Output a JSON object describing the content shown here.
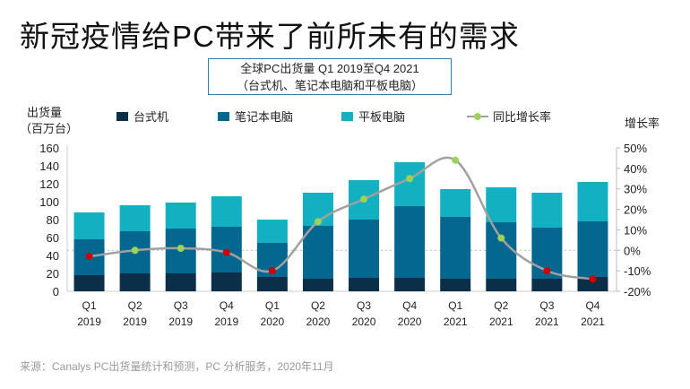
{
  "title": "新冠疫情给PC带来了前所未有的需求",
  "source": "来源：Canalys PC出货量统计和预测，PC 分析服务，2020年11月",
  "chart_data": {
    "type": "bar",
    "title_line1": "全球PC出货量  Q1 2019至Q4  2021",
    "title_line2": "（台式机、笔记本电脑和平板电脑）",
    "ylabel": [
      "出货量",
      "（百万台）"
    ],
    "y2label": "增长率",
    "ylim": [
      0,
      160
    ],
    "y2lim": [
      -20,
      50
    ],
    "yticks": [
      "0",
      "20",
      "40",
      "60",
      "80",
      "100",
      "120",
      "140",
      "160"
    ],
    "y2ticks": [
      "-20%",
      "-10%",
      "0%",
      "10%",
      "20%",
      "30%",
      "40%",
      "50%"
    ],
    "categories": [
      [
        "Q1",
        "2019"
      ],
      [
        "Q2",
        "2019"
      ],
      [
        "Q3",
        "2019"
      ],
      [
        "Q4",
        "2019"
      ],
      [
        "Q1",
        "2020"
      ],
      [
        "Q2",
        "2020"
      ],
      [
        "Q3",
        "2020"
      ],
      [
        "Q4",
        "2020"
      ],
      [
        "Q1",
        "2021"
      ],
      [
        "Q2",
        "2021"
      ],
      [
        "Q3",
        "2021"
      ],
      [
        "Q4",
        "2021"
      ]
    ],
    "series": [
      {
        "name": "台式机",
        "color": "#0b2f48",
        "values": [
          18,
          20,
          20,
          21,
          16,
          14,
          15,
          15,
          14,
          14,
          14,
          16
        ]
      },
      {
        "name": "笔记本电脑",
        "color": "#046790",
        "values": [
          40,
          47,
          50,
          51,
          38,
          59,
          65,
          80,
          69,
          63,
          57,
          62
        ]
      },
      {
        "name": "平板电脑",
        "color": "#12b0c1",
        "values": [
          30,
          29,
          29,
          34,
          26,
          37,
          44,
          49,
          31,
          39,
          39,
          44
        ]
      }
    ],
    "line": {
      "name": "同比增长率",
      "color": "#a0a0a0",
      "pos_color": "#9bd35a",
      "neg_color": "#cc0000",
      "values": [
        -3,
        0,
        1,
        -1,
        -10,
        14,
        25,
        35,
        44,
        6,
        -10,
        -14
      ]
    }
  }
}
